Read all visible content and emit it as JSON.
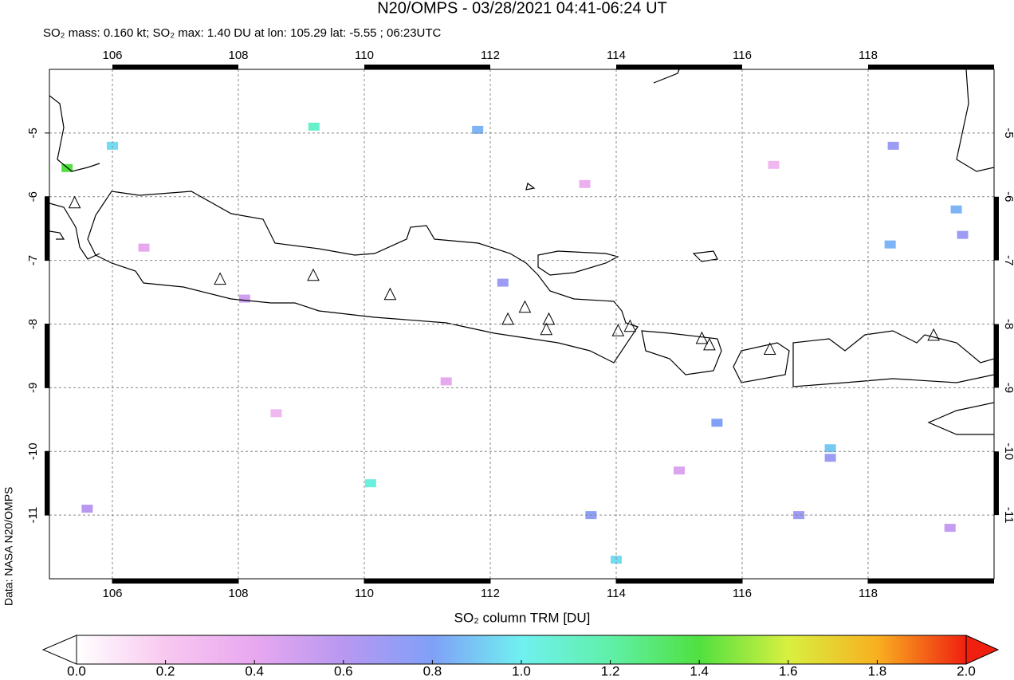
{
  "chart_data": {
    "type": "map",
    "title": "N20/OMPS - 03/28/2021 04:41-06:24 UT",
    "subtitle": "SO₂ mass: 0.160 kt; SO₂ max: 1.40 DU at lon: 105.29 lat: -5.55 ; 06:23UTC",
    "xlim": [
      105,
      120
    ],
    "ylim": [
      -12,
      -4
    ],
    "xticks": [
      106,
      108,
      110,
      112,
      114,
      116,
      118
    ],
    "yticks": [
      -5,
      -6,
      -7,
      -8,
      -9,
      -10,
      -11
    ],
    "grid": true,
    "volcano_color": "#000000",
    "volcanoes": [
      {
        "lon": 105.4,
        "lat": -6.1
      },
      {
        "lon": 107.71,
        "lat": -7.3
      },
      {
        "lon": 109.19,
        "lat": -7.24
      },
      {
        "lon": 110.41,
        "lat": -7.54
      },
      {
        "lon": 112.28,
        "lat": -7.93
      },
      {
        "lon": 112.55,
        "lat": -7.74
      },
      {
        "lon": 112.93,
        "lat": -7.93
      },
      {
        "lon": 112.89,
        "lat": -8.09
      },
      {
        "lon": 114.03,
        "lat": -8.11
      },
      {
        "lon": 114.22,
        "lat": -8.04
      },
      {
        "lon": 115.36,
        "lat": -8.23
      },
      {
        "lon": 115.48,
        "lat": -8.33
      },
      {
        "lon": 116.44,
        "lat": -8.4
      },
      {
        "lon": 119.04,
        "lat": -8.18
      }
    ],
    "cells": [
      {
        "lon": 105.28,
        "lat": -5.55,
        "value": 1.4
      },
      {
        "lon": 106.0,
        "lat": -5.2,
        "value": 0.95
      },
      {
        "lon": 109.2,
        "lat": -4.9,
        "value": 1.1
      },
      {
        "lon": 110.1,
        "lat": -10.5,
        "value": 1.05
      },
      {
        "lon": 114.0,
        "lat": -11.7,
        "value": 0.95
      },
      {
        "lon": 117.4,
        "lat": -9.95,
        "value": 0.9
      },
      {
        "lon": 117.4,
        "lat": -10.1,
        "value": 0.7
      },
      {
        "lon": 118.4,
        "lat": -5.2,
        "value": 0.7
      },
      {
        "lon": 119.4,
        "lat": -6.2,
        "value": 0.85
      },
      {
        "lon": 118.35,
        "lat": -6.75,
        "value": 0.85
      },
      {
        "lon": 119.5,
        "lat": -6.6,
        "value": 0.7
      },
      {
        "lon": 111.8,
        "lat": -4.95,
        "value": 0.85
      },
      {
        "lon": 115.6,
        "lat": -9.55,
        "value": 0.8
      },
      {
        "lon": 113.6,
        "lat": -11.0,
        "value": 0.75
      },
      {
        "lon": 116.9,
        "lat": -11.0,
        "value": 0.7
      },
      {
        "lon": 112.2,
        "lat": -7.35,
        "value": 0.7
      },
      {
        "lon": 108.1,
        "lat": -7.6,
        "value": 0.5
      },
      {
        "lon": 106.5,
        "lat": -6.8,
        "value": 0.4
      },
      {
        "lon": 113.5,
        "lat": -5.8,
        "value": 0.35
      },
      {
        "lon": 115.0,
        "lat": -10.3,
        "value": 0.45
      },
      {
        "lon": 116.5,
        "lat": -5.5,
        "value": 0.3
      },
      {
        "lon": 108.6,
        "lat": -9.4,
        "value": 0.3
      },
      {
        "lon": 111.3,
        "lat": -8.9,
        "value": 0.4
      },
      {
        "lon": 119.3,
        "lat": -11.2,
        "value": 0.55
      },
      {
        "lon": 105.6,
        "lat": -10.9,
        "value": 0.6
      }
    ],
    "colorbar": {
      "label": "SO₂ column TRM [DU]",
      "lim": [
        0,
        2
      ],
      "ticks": [
        {
          "value": 0,
          "label": "0.0"
        },
        {
          "value": 0.2,
          "label": "0.2"
        },
        {
          "value": 0.4,
          "label": "0.4"
        },
        {
          "value": 0.6,
          "label": "0.6"
        },
        {
          "value": 0.8,
          "label": "0.8"
        },
        {
          "value": 1,
          "label": "1.0"
        },
        {
          "value": 1.2,
          "label": "1.2"
        },
        {
          "value": 1.4,
          "label": "1.4"
        },
        {
          "value": 1.6,
          "label": "1.6"
        },
        {
          "value": 1.8,
          "label": "1.8"
        },
        {
          "value": 2,
          "label": "2.0"
        }
      ],
      "colors": [
        "#ffffff",
        "#f8c8f0",
        "#e8a8f0",
        "#b898f0",
        "#80a0f8",
        "#70f0f0",
        "#60f0a8",
        "#50e040",
        "#d8f040",
        "#f8b020",
        "#f02010"
      ]
    },
    "credit": "Data: NASA N20/OMPS",
    "credit_color": "#e02010"
  }
}
